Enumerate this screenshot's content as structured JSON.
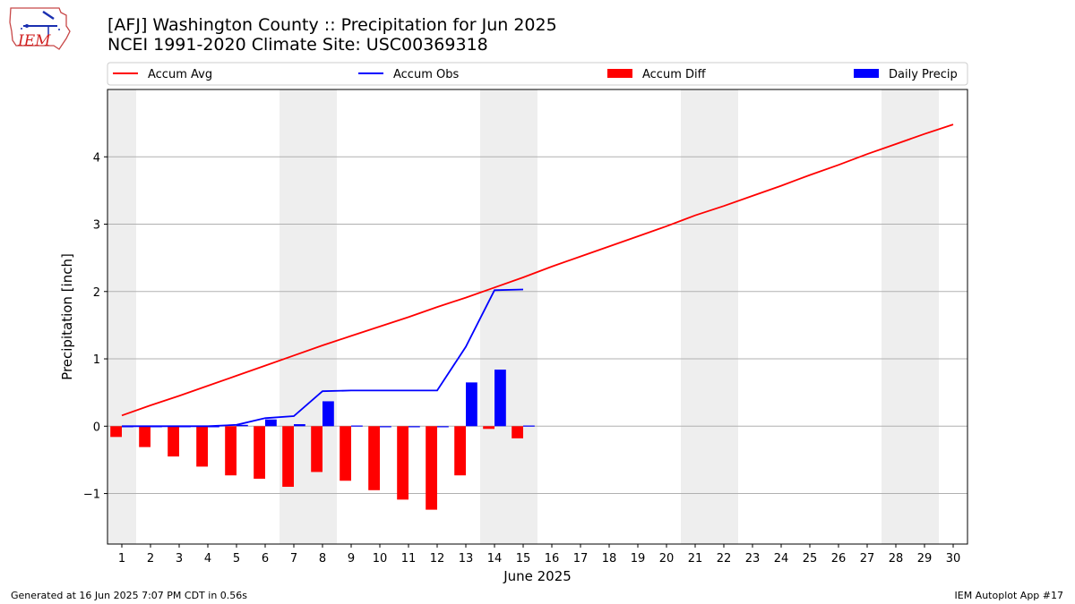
{
  "header": {
    "logo_text": "IEM",
    "title_line1": "[AFJ] Washington County :: Precipitation for Jun 2025",
    "title_line2": "NCEI 1991-2020 Climate Site: USC00369318"
  },
  "footer": {
    "left": "Generated at 16 Jun 2025 7:07 PM CDT in 0.56s",
    "right": "IEM Autoplot App #17"
  },
  "chart_data": {
    "type": "bar",
    "title": "[AFJ] Washington County :: Precipitation for Jun 2025",
    "subtitle": "NCEI 1991-2020 Climate Site: USC00369318",
    "xlabel": "June 2025",
    "ylabel": "Precipitation [inch]",
    "x": [
      1,
      2,
      3,
      4,
      5,
      6,
      7,
      8,
      9,
      10,
      11,
      12,
      13,
      14,
      15,
      16,
      17,
      18,
      19,
      20,
      21,
      22,
      23,
      24,
      25,
      26,
      27,
      28,
      29,
      30
    ],
    "xlim": [
      0.5,
      30.5
    ],
    "ylim": [
      -1.75,
      5.0
    ],
    "yticks": [
      -1,
      0,
      1,
      2,
      3,
      4
    ],
    "ytick_labels": [
      "−1",
      "0",
      "1",
      "2",
      "3",
      "4"
    ],
    "grid": "horizontal",
    "legend_position": "top",
    "weekend_shading": [
      1,
      7,
      8,
      14,
      15,
      21,
      22,
      28,
      29
    ],
    "series": [
      {
        "name": "Accum Avg",
        "kind": "line",
        "color": "#ff0000",
        "values": [
          0.16,
          0.31,
          0.45,
          0.6,
          0.75,
          0.9,
          1.05,
          1.2,
          1.34,
          1.48,
          1.62,
          1.77,
          1.91,
          2.06,
          2.21,
          2.37,
          2.52,
          2.67,
          2.82,
          2.97,
          3.13,
          3.27,
          3.42,
          3.57,
          3.73,
          3.88,
          4.04,
          4.19,
          4.34,
          4.48
        ]
      },
      {
        "name": "Accum Obs",
        "kind": "line",
        "color": "#0000ff",
        "values": [
          0.0,
          0.0,
          0.0,
          0.0,
          0.02,
          0.12,
          0.15,
          0.52,
          0.53,
          0.53,
          0.53,
          0.53,
          1.18,
          2.02,
          2.03,
          null,
          null,
          null,
          null,
          null,
          null,
          null,
          null,
          null,
          null,
          null,
          null,
          null,
          null,
          null
        ]
      },
      {
        "name": "Accum Diff",
        "kind": "bar",
        "color": "#ff0000",
        "values": [
          -0.16,
          -0.31,
          -0.45,
          -0.6,
          -0.73,
          -0.78,
          -0.9,
          -0.68,
          -0.81,
          -0.95,
          -1.09,
          -1.24,
          -0.73,
          -0.04,
          -0.18,
          null,
          null,
          null,
          null,
          null,
          null,
          null,
          null,
          null,
          null,
          null,
          null,
          null,
          null,
          null
        ]
      },
      {
        "name": "Daily Precip",
        "kind": "bar",
        "color": "#0000ff",
        "values": [
          0.0,
          0.0,
          0.0,
          0.0,
          0.02,
          0.1,
          0.03,
          0.37,
          0.01,
          0.0,
          0.0,
          0.0,
          0.65,
          0.84,
          0.01,
          null,
          null,
          null,
          null,
          null,
          null,
          null,
          null,
          null,
          null,
          null,
          null,
          null,
          null,
          null
        ]
      }
    ]
  }
}
